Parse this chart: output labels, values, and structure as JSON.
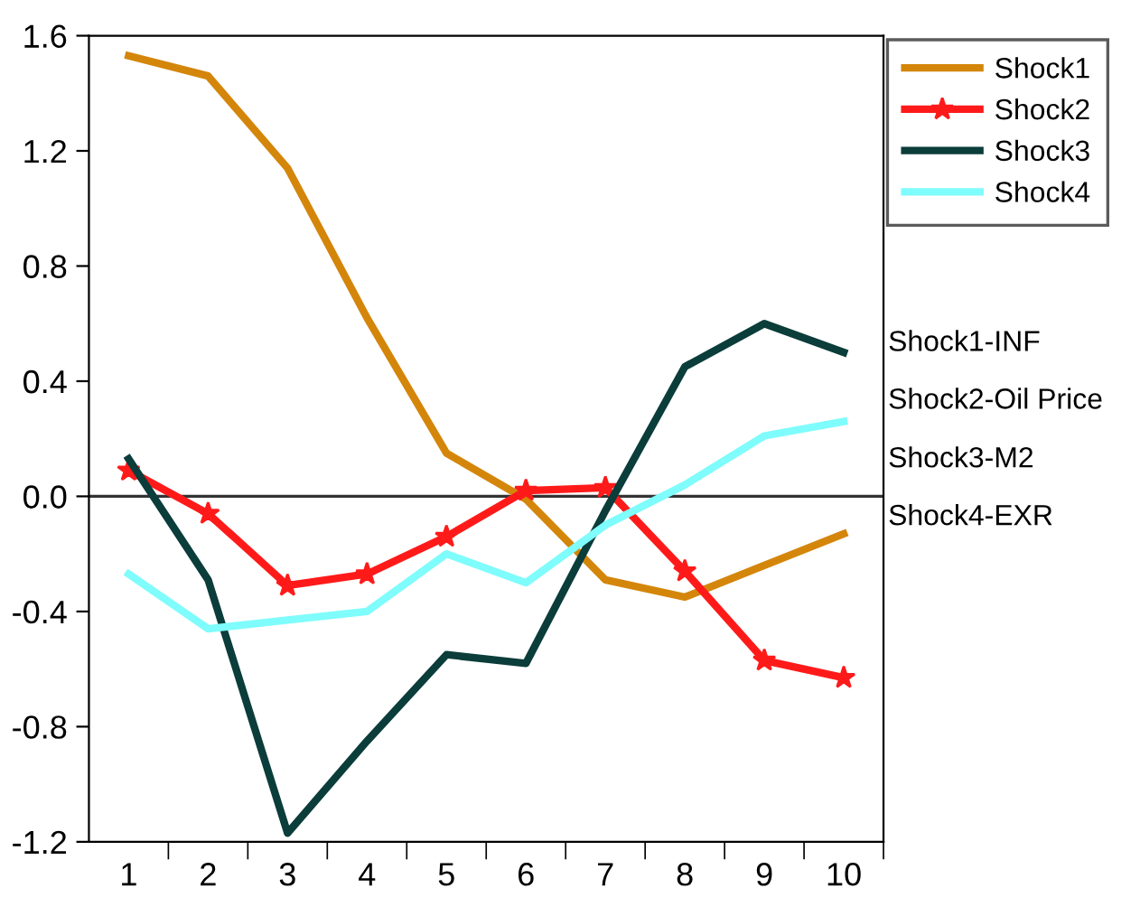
{
  "chart_data": {
    "type": "line",
    "categories": [
      "1",
      "2",
      "3",
      "4",
      "5",
      "6",
      "7",
      "8",
      "9",
      "10"
    ],
    "series": [
      {
        "name": "Shock1",
        "color": "#d4860b",
        "values": [
          1.53,
          1.46,
          1.14,
          0.62,
          0.15,
          -0.01,
          -0.29,
          -0.35,
          -0.24,
          -0.13
        ]
      },
      {
        "name": "Shock2",
        "color": "#ff1a1a",
        "marker": "star",
        "values": [
          0.09,
          -0.06,
          -0.31,
          -0.27,
          -0.14,
          0.02,
          0.03,
          -0.26,
          -0.57,
          -0.63
        ]
      },
      {
        "name": "Shock3",
        "color": "#0b3d3a",
        "values": [
          0.13,
          -0.29,
          -1.17,
          -0.85,
          -0.55,
          -0.58,
          -0.05,
          0.45,
          0.6,
          0.5
        ]
      },
      {
        "name": "Shock4",
        "color": "#7ffcfc",
        "values": [
          -0.27,
          -0.46,
          -0.43,
          -0.4,
          -0.2,
          -0.3,
          -0.1,
          0.04,
          0.21,
          0.26
        ]
      }
    ],
    "ylim": [
      -1.2,
      1.6
    ],
    "yticks": [
      -1.2,
      -0.8,
      -0.4,
      {
        "value": 0,
        "label": "0.0"
      },
      0.4,
      0.8,
      1.2,
      1.6
    ],
    "ref_lines": [
      {
        "axis": "y",
        "value": 0,
        "color": "#333333"
      }
    ],
    "legend": "top right",
    "grid": false,
    "annotations": [
      "Shock1-INF",
      "Shock2-Oil Price",
      "Shock3-M2",
      "Shock4-EXR"
    ]
  }
}
